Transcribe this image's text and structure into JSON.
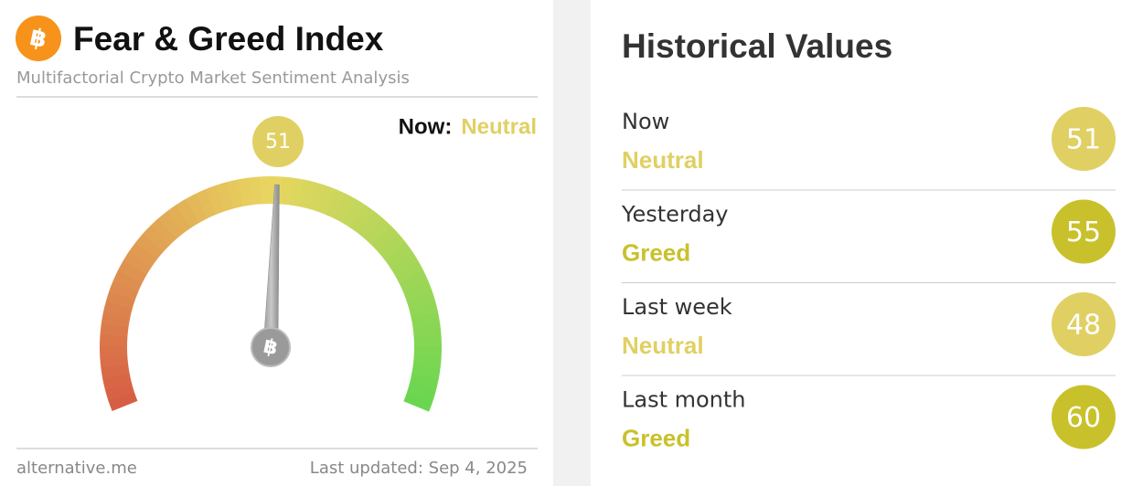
{
  "index_card": {
    "title": "Fear & Greed Index",
    "subtitle": "Multifactorial Crypto Market Sentiment Analysis",
    "now_label": "Now:",
    "now_classification": "Neutral",
    "now_color": "#e0d063",
    "gauge": {
      "value": 51,
      "range": [
        0,
        100
      ]
    },
    "source": "alternative.me",
    "updated": "Last updated: Sep 4, 2025"
  },
  "history_card": {
    "title": "Historical Values",
    "rows": [
      {
        "label": "Now",
        "classification": "Neutral",
        "value": 51,
        "color": "#e0d063"
      },
      {
        "label": "Yesterday",
        "classification": "Greed",
        "value": 55,
        "color": "#c9c12b"
      },
      {
        "label": "Last week",
        "classification": "Neutral",
        "value": 48,
        "color": "#e0d063"
      },
      {
        "label": "Last month",
        "classification": "Greed",
        "value": 60,
        "color": "#c9c12b"
      }
    ]
  }
}
